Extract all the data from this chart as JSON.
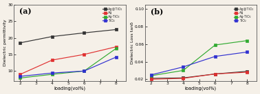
{
  "x": [
    2,
    4,
    6,
    8
  ],
  "panel_a": {
    "title": "(a)",
    "ylabel": "Dielectric permittivity",
    "xlabel": "loading(vol%)",
    "ylim": [
      7,
      30
    ],
    "yticks": [
      10,
      15,
      20,
      25,
      30
    ],
    "xticks": [
      2,
      3,
      4,
      5,
      6,
      7,
      8
    ],
    "series": [
      {
        "label": "Ag@TiO₂",
        "values": [
          18.5,
          20.4,
          21.5,
          22.5
        ],
        "color": "#333333",
        "marker": "s"
      },
      {
        "label": "Ag",
        "values": [
          9.0,
          13.3,
          15.0,
          17.3
        ],
        "color": "#e03030",
        "marker": "s"
      },
      {
        "label": "Ag-TiO₂",
        "values": [
          7.9,
          9.0,
          10.0,
          16.8
        ],
        "color": "#30aa30",
        "marker": "s"
      },
      {
        "label": "TiO₂",
        "values": [
          8.4,
          9.4,
          10.0,
          14.2
        ],
        "color": "#3030d0",
        "marker": "s"
      }
    ]
  },
  "panel_b": {
    "title": "(b)",
    "ylabel": "Dielectric Loss tanδ",
    "xlabel": "loading(vol%)",
    "ylim": [
      0.018,
      0.105
    ],
    "yticks": [
      0.02,
      0.04,
      0.06,
      0.08,
      0.1
    ],
    "xticks": [
      2,
      3,
      4,
      5,
      6,
      7,
      8
    ],
    "series": [
      {
        "label": "Ag@TiO₂",
        "values": [
          0.021,
          0.0215,
          0.026,
          0.029
        ],
        "color": "#333333",
        "marker": "s"
      },
      {
        "label": "Ag",
        "values": [
          0.02,
          0.021,
          0.026,
          0.028
        ],
        "color": "#e03030",
        "marker": "s"
      },
      {
        "label": "Ag-TiO₂",
        "values": [
          0.024,
          0.03,
          0.059,
          0.064
        ],
        "color": "#30aa30",
        "marker": "s"
      },
      {
        "label": "TiO₂",
        "values": [
          0.025,
          0.034,
          0.046,
          0.051
        ],
        "color": "#3030d0",
        "marker": "s"
      }
    ]
  },
  "bg_color": "#f5f0e8",
  "figsize": [
    3.78,
    1.38
  ],
  "dpi": 100
}
